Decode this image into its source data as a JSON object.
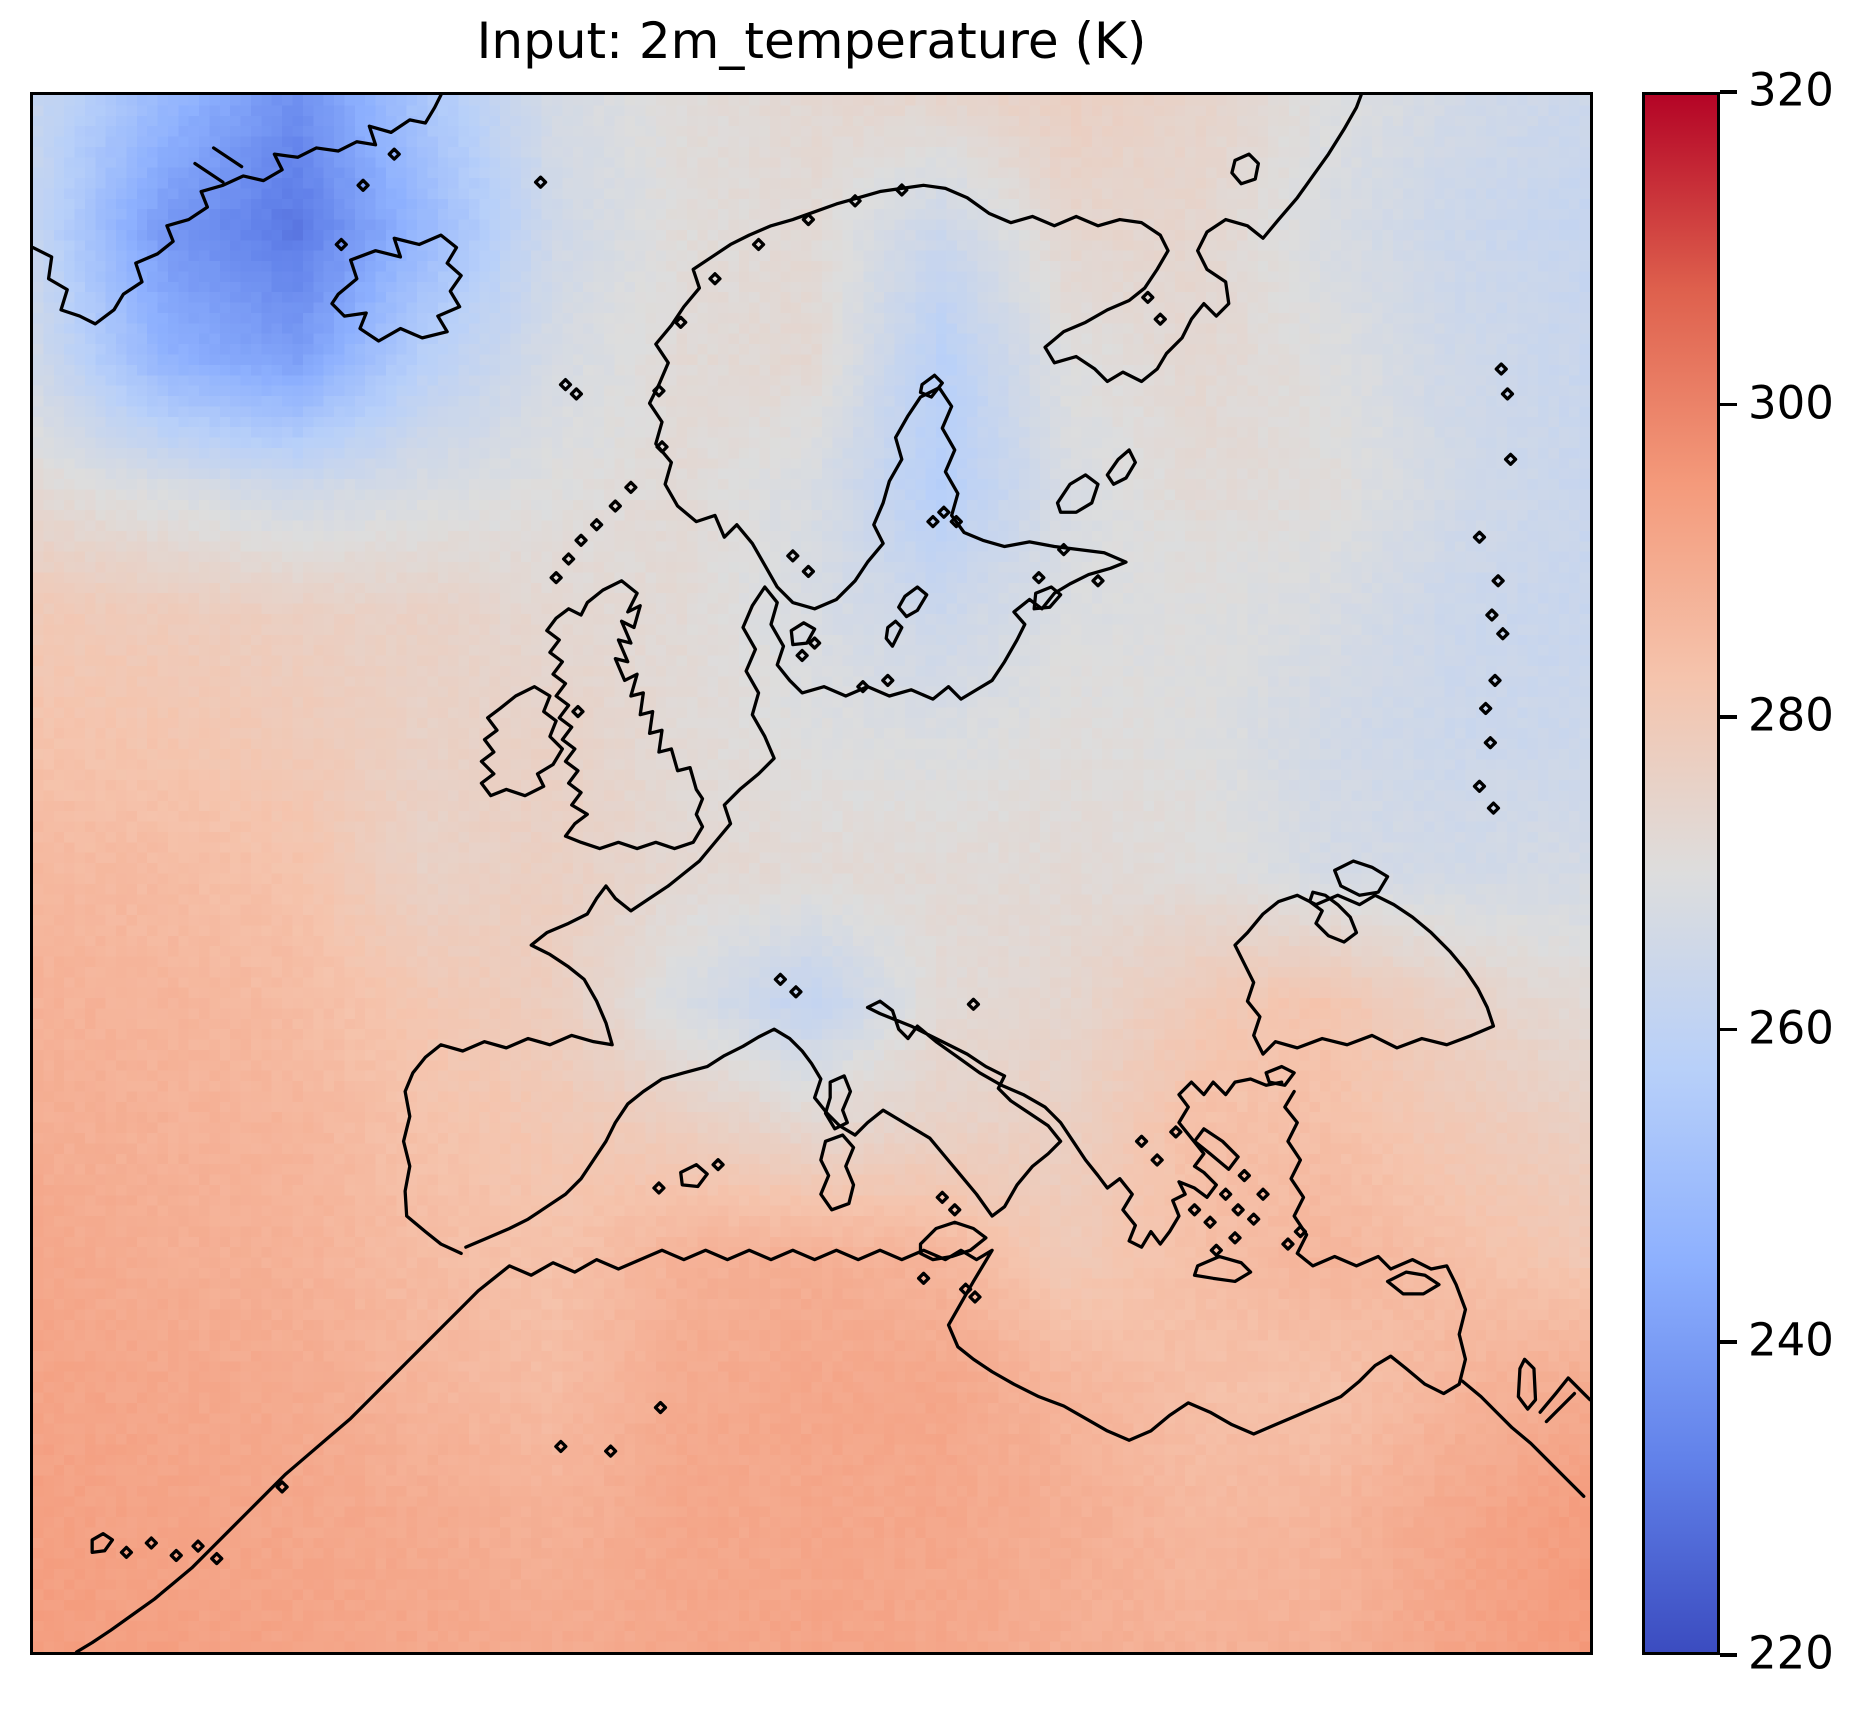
{
  "figure": {
    "title": "Input: 2m_temperature (K)"
  },
  "chart_data": {
    "type": "heatmap",
    "title": "Input: 2m_temperature (K)",
    "variable": "2m_temperature",
    "units": "K",
    "map_region": "Europe and North Atlantic with black coastline overlay",
    "colorbar": {
      "min": 220,
      "max": 320,
      "ticks": [
        320,
        300,
        280,
        260,
        240,
        220
      ],
      "orientation": "vertical",
      "position": "right"
    },
    "colormap": {
      "name": "coolwarm",
      "stops": [
        {
          "t": 0.0,
          "color": "#3b4cc0"
        },
        {
          "t": 0.125,
          "color": "#6282ea"
        },
        {
          "t": 0.25,
          "color": "#8db0fe"
        },
        {
          "t": 0.375,
          "color": "#b8d0f9"
        },
        {
          "t": 0.5,
          "color": "#dddddd"
        },
        {
          "t": 0.625,
          "color": "#f5c4ad"
        },
        {
          "t": 0.75,
          "color": "#f49a7b"
        },
        {
          "t": 0.875,
          "color": "#de604d"
        },
        {
          "t": 1.0,
          "color": "#b40426"
        }
      ]
    },
    "grid": {
      "rows": 13,
      "cols": 13,
      "order": "rows top(north) to bottom(south), cols left(west) to right(east)",
      "values_kelvin": [
        [
          262,
          248,
          236,
          254,
          267,
          271,
          273,
          274,
          277,
          275,
          270,
          266,
          264
        ],
        [
          261,
          238,
          230,
          248,
          265,
          271,
          272,
          264,
          274,
          274,
          268,
          264,
          262
        ],
        [
          265,
          246,
          240,
          258,
          267,
          272,
          273,
          258,
          270,
          273,
          270,
          265,
          263
        ],
        [
          272,
          268,
          265,
          268,
          270,
          272,
          268,
          257,
          268,
          272,
          271,
          266,
          263
        ],
        [
          280,
          279,
          277,
          276,
          273,
          272,
          268,
          264,
          269,
          270,
          268,
          264,
          263
        ],
        [
          283,
          282,
          280,
          276,
          276,
          272,
          270,
          269,
          271,
          270,
          266,
          264,
          264
        ],
        [
          286,
          285,
          283,
          276,
          277,
          273,
          272,
          272,
          272,
          271,
          267,
          266,
          267
        ],
        [
          288,
          287,
          285,
          281,
          278,
          268,
          261,
          272,
          274,
          280,
          282,
          276,
          272
        ],
        [
          289,
          288,
          287,
          283,
          281,
          278,
          274,
          276,
          277,
          284,
          284,
          280,
          277
        ],
        [
          291,
          289,
          288,
          285,
          283,
          288,
          289,
          287,
          280,
          284,
          287,
          284,
          281
        ],
        [
          292,
          291,
          290,
          287,
          285,
          290,
          291,
          291,
          287,
          284,
          283,
          287,
          290
        ],
        [
          293,
          292,
          291,
          290,
          288,
          291,
          291,
          291,
          289,
          286,
          287,
          291,
          294
        ],
        [
          294,
          293,
          292,
          291,
          290,
          291,
          292,
          291,
          289,
          288,
          288,
          292,
          295
        ]
      ],
      "noise_amplitude_kelvin": 1.0
    }
  }
}
